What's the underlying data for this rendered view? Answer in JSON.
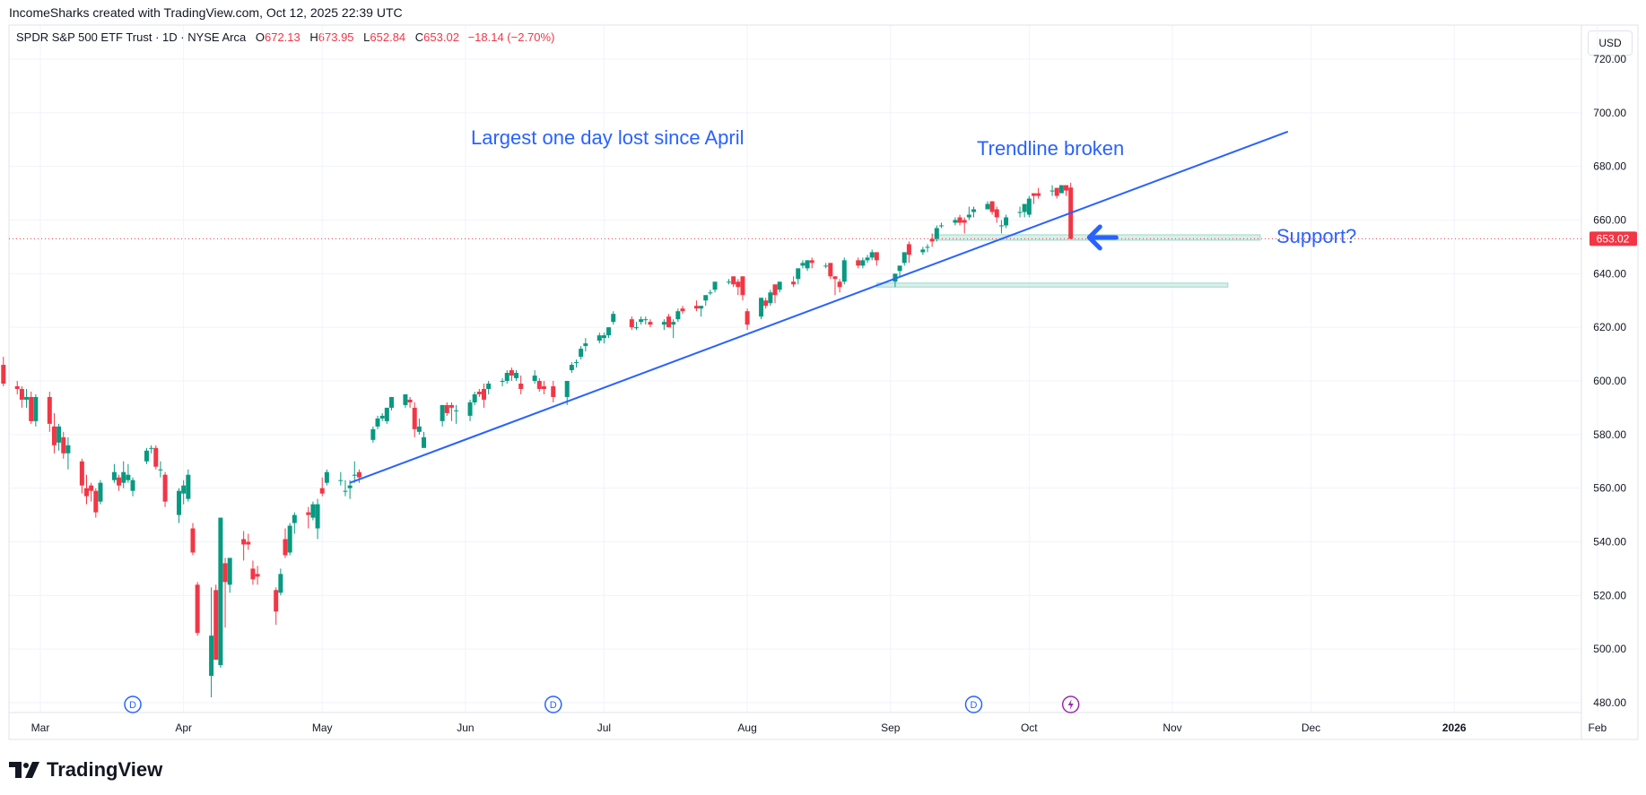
{
  "header": {
    "credit": "IncomeSharks created with TradingView.com, Oct 12, 2025 22:39 UTC"
  },
  "legend": {
    "symbol": "SPDR S&P 500 ETF Trust · 1D · NYSE Arca",
    "open_label": "O",
    "open": "672.13",
    "high_label": "H",
    "high": "673.95",
    "low_label": "L",
    "low": "652.84",
    "close_label": "C",
    "close": "653.02",
    "change": "−18.14 (−2.70%)"
  },
  "currency": "USD",
  "last_price_tag": "653.02",
  "annotations": {
    "largest_drop": "Largest one day lost since April",
    "trendline": "Trendline broken",
    "support": "Support?"
  },
  "footer": {
    "brand": "TradingView"
  },
  "colors": {
    "up": "#089981",
    "down": "#f23645",
    "annotation": "#2962ff",
    "trendline": "#2962ff",
    "zone": "#9fd8c9",
    "dividend_badge": "#2962ff",
    "split_badge": "#9c27b0",
    "grid": "#f0f3fa"
  },
  "event_icons": [
    "D",
    "D",
    "D",
    "lightning-icon"
  ],
  "chart_data": {
    "type": "candlestick",
    "title": "SPDR S&P 500 ETF Trust · 1D · NYSE Arca",
    "ylim": [
      475,
      727
    ],
    "y_ticks": [
      480,
      500,
      520,
      540,
      560,
      580,
      600,
      620,
      640,
      660,
      680,
      700,
      720
    ],
    "y_tick_labels": [
      "480.00",
      "500.00",
      "520.00",
      "540.00",
      "560.00",
      "580.00",
      "600.00",
      "620.00",
      "640.00",
      "660.00",
      "680.00",
      "700.00",
      "720.00"
    ],
    "x_labels": [
      "Mar",
      "Apr",
      "May",
      "Jun",
      "Jul",
      "Aug",
      "Sep",
      "Oct",
      "Nov",
      "Dec",
      "2026",
      "Feb"
    ],
    "grid": true,
    "last_price": 653.02,
    "trendline": {
      "from": [
        "2025-05-07",
        562
      ],
      "to": [
        "2025-11-26",
        693
      ]
    },
    "support_zones": [
      {
        "from": "2025-09-10",
        "to": "2025-11-20",
        "low": 652.5,
        "high": 654.5
      },
      {
        "from": "2025-08-29",
        "to": "2025-11-13",
        "low": 635,
        "high": 636.5
      }
    ],
    "events": [
      {
        "date": "2025-03-21",
        "kind": "dividend"
      },
      {
        "date": "2025-06-20",
        "kind": "dividend"
      },
      {
        "date": "2025-09-19",
        "kind": "dividend"
      },
      {
        "date": "2025-10-10",
        "kind": "split"
      }
    ],
    "candles": [
      [
        "2025-02-21",
        606,
        609,
        598,
        599
      ],
      [
        "2025-02-24",
        598,
        600,
        595,
        597
      ],
      [
        "2025-02-25",
        597,
        598,
        590,
        593
      ],
      [
        "2025-02-26",
        593,
        597,
        590,
        594
      ],
      [
        "2025-02-27",
        594,
        596,
        584,
        585
      ],
      [
        "2025-02-28",
        585,
        595,
        583,
        594
      ],
      [
        "2025-03-03",
        594,
        596,
        581,
        584
      ],
      [
        "2025-03-04",
        583,
        588,
        573,
        576
      ],
      [
        "2025-03-05",
        577,
        584,
        574,
        583
      ],
      [
        "2025-03-06",
        579,
        581,
        571,
        573
      ],
      [
        "2025-03-07",
        573,
        579,
        567,
        576
      ],
      [
        "2025-03-10",
        570,
        571,
        558,
        561
      ],
      [
        "2025-03-11",
        560,
        565,
        554,
        557
      ],
      [
        "2025-03-12",
        561,
        562,
        555,
        559
      ],
      [
        "2025-03-13",
        559,
        560,
        549,
        551
      ],
      [
        "2025-03-14",
        555,
        563,
        554,
        562
      ],
      [
        "2025-03-17",
        563,
        569,
        562,
        566
      ],
      [
        "2025-03-18",
        564,
        565,
        559,
        561
      ],
      [
        "2025-03-19",
        562,
        570,
        560,
        566
      ],
      [
        "2025-03-20",
        563,
        569,
        562,
        565
      ],
      [
        "2025-03-21",
        559,
        564,
        557,
        563
      ],
      [
        "2025-03-24",
        570,
        575,
        569,
        574
      ],
      [
        "2025-03-25",
        575,
        576,
        573,
        575
      ],
      [
        "2025-03-26",
        575,
        576,
        567,
        568
      ],
      [
        "2025-03-27",
        567,
        570,
        564,
        567
      ],
      [
        "2025-03-28",
        565,
        566,
        553,
        555
      ],
      [
        "2025-03-31",
        550,
        560,
        547,
        559
      ],
      [
        "2025-04-01",
        558,
        563,
        554,
        561
      ],
      [
        "2025-04-02",
        556,
        567,
        555,
        565
      ],
      [
        "2025-04-03",
        545,
        547,
        535,
        536
      ],
      [
        "2025-04-04",
        524,
        525,
        505,
        506
      ],
      [
        "2025-04-07",
        490,
        523,
        482,
        505
      ],
      [
        "2025-04-08",
        522,
        524,
        496,
        496
      ],
      [
        "2025-04-09",
        494,
        549,
        493,
        549
      ],
      [
        "2025-04-10",
        532,
        534,
        508,
        525
      ],
      [
        "2025-04-11",
        524,
        534,
        521,
        534
      ],
      [
        "2025-04-14",
        541,
        544,
        533,
        539
      ],
      [
        "2025-04-15",
        540,
        543,
        537,
        539
      ],
      [
        "2025-04-16",
        530,
        533,
        524,
        526
      ],
      [
        "2025-04-17",
        528,
        531,
        524,
        527
      ],
      [
        "2025-04-21",
        522,
        523,
        509,
        514
      ],
      [
        "2025-04-22",
        521,
        530,
        520,
        528
      ],
      [
        "2025-04-23",
        541,
        545,
        534,
        535
      ],
      [
        "2025-04-24",
        536,
        547,
        535,
        546
      ],
      [
        "2025-04-25",
        547,
        551,
        543,
        550
      ],
      [
        "2025-04-28",
        551,
        553,
        545,
        550
      ],
      [
        "2025-04-29",
        549,
        555,
        548,
        554
      ],
      [
        "2025-04-30",
        545,
        556,
        541,
        554
      ],
      [
        "2025-05-01",
        560,
        564,
        557,
        558
      ],
      [
        "2025-05-02",
        562,
        567,
        561,
        566
      ],
      [
        "2025-05-05",
        563,
        566,
        561,
        563
      ],
      [
        "2025-05-06",
        559,
        563,
        557,
        559
      ],
      [
        "2025-05-07",
        560,
        563,
        556,
        561
      ],
      [
        "2025-05-08",
        565,
        570,
        562,
        565
      ],
      [
        "2025-05-09",
        566,
        567,
        562,
        564
      ],
      [
        "2025-05-12",
        578,
        583,
        577,
        582
      ],
      [
        "2025-05-13",
        583,
        587,
        582,
        586
      ],
      [
        "2025-05-14",
        586,
        588,
        585,
        587
      ],
      [
        "2025-05-15",
        585,
        590,
        584,
        590
      ],
      [
        "2025-05-16",
        590,
        594,
        589,
        594
      ],
      [
        "2025-05-19",
        591,
        595,
        590,
        595
      ],
      [
        "2025-05-20",
        593,
        594,
        590,
        592
      ],
      [
        "2025-05-21",
        590,
        592,
        579,
        582
      ],
      [
        "2025-05-22",
        581,
        586,
        580,
        583
      ],
      [
        "2025-05-23",
        575,
        581,
        575,
        579
      ],
      [
        "2025-05-27",
        585,
        591,
        583,
        591
      ],
      [
        "2025-05-28",
        591,
        592,
        587,
        588
      ],
      [
        "2025-05-29",
        591,
        592,
        585,
        590
      ],
      [
        "2025-05-30",
        589,
        591,
        584,
        589
      ],
      [
        "2025-06-02",
        587,
        593,
        585,
        592
      ],
      [
        "2025-06-03",
        592,
        596,
        591,
        595
      ],
      [
        "2025-06-04",
        596,
        597,
        594,
        595
      ],
      [
        "2025-06-05",
        597,
        599,
        590,
        593
      ],
      [
        "2025-06-06",
        597,
        600,
        595,
        599
      ],
      [
        "2025-06-09",
        600,
        601,
        598,
        600
      ],
      [
        "2025-06-10",
        600,
        604,
        599,
        603
      ],
      [
        "2025-06-11",
        604,
        605,
        600,
        602
      ],
      [
        "2025-06-12",
        601,
        604,
        600,
        603
      ],
      [
        "2025-06-13",
        599,
        602,
        595,
        597
      ],
      [
        "2025-06-16",
        600,
        604,
        599,
        602
      ],
      [
        "2025-06-17",
        600,
        601,
        596,
        597
      ],
      [
        "2025-06-18",
        598,
        600,
        595,
        597
      ],
      [
        "2025-06-20",
        598,
        600,
        592,
        594
      ],
      [
        "2025-06-23",
        594,
        600,
        591,
        600
      ],
      [
        "2025-06-24",
        604,
        607,
        603,
        606
      ],
      [
        "2025-06-25",
        607,
        608,
        605,
        607
      ],
      [
        "2025-06-26",
        609,
        613,
        608,
        612
      ],
      [
        "2025-06-27",
        613,
        616,
        611,
        614
      ],
      [
        "2025-06-30",
        615,
        618,
        614,
        617
      ],
      [
        "2025-07-01",
        616,
        618,
        614,
        617
      ],
      [
        "2025-07-02",
        617,
        620,
        616,
        620
      ],
      [
        "2025-07-03",
        622,
        626,
        621,
        625
      ],
      [
        "2025-07-07",
        623,
        624,
        619,
        620
      ],
      [
        "2025-07-08",
        620,
        622,
        619,
        620
      ],
      [
        "2025-07-09",
        622,
        624,
        621,
        623
      ],
      [
        "2025-07-10",
        623,
        624,
        621,
        623
      ],
      [
        "2025-07-11",
        622,
        623,
        620,
        621
      ],
      [
        "2025-07-14",
        621,
        623,
        619,
        622
      ],
      [
        "2025-07-15",
        624,
        625,
        620,
        620
      ],
      [
        "2025-07-16",
        621,
        623,
        616,
        622
      ],
      [
        "2025-07-17",
        623,
        627,
        622,
        626
      ],
      [
        "2025-07-18",
        627,
        628,
        625,
        626
      ],
      [
        "2025-07-21",
        628,
        630,
        626,
        627
      ],
      [
        "2025-07-22",
        627,
        628,
        624,
        628
      ],
      [
        "2025-07-23",
        630,
        632,
        628,
        632
      ],
      [
        "2025-07-24",
        633,
        634,
        632,
        633
      ],
      [
        "2025-07-25",
        634,
        637,
        633,
        637
      ],
      [
        "2025-07-28",
        637,
        638,
        636,
        637
      ],
      [
        "2025-07-29",
        639,
        639,
        635,
        636
      ],
      [
        "2025-07-30",
        637,
        638,
        632,
        635
      ],
      [
        "2025-07-31",
        639,
        639,
        630,
        632
      ],
      [
        "2025-08-01",
        626,
        627,
        619,
        621
      ],
      [
        "2025-08-04",
        624,
        631,
        623,
        631
      ],
      [
        "2025-08-05",
        630,
        631,
        627,
        628
      ],
      [
        "2025-08-06",
        629,
        634,
        628,
        633
      ],
      [
        "2025-08-07",
        636,
        636,
        629,
        632
      ],
      [
        "2025-08-08",
        634,
        637,
        633,
        637
      ],
      [
        "2025-08-11",
        637,
        639,
        635,
        636
      ],
      [
        "2025-08-12",
        638,
        642,
        636,
        642
      ],
      [
        "2025-08-13",
        643,
        645,
        642,
        644
      ],
      [
        "2025-08-14",
        642,
        645,
        641,
        645
      ],
      [
        "2025-08-15",
        645,
        646,
        642,
        644
      ],
      [
        "2025-08-18",
        643,
        644,
        642,
        643
      ],
      [
        "2025-08-19",
        644,
        644,
        638,
        639
      ],
      [
        "2025-08-20",
        639,
        639,
        632,
        638
      ],
      [
        "2025-08-21",
        637,
        638,
        633,
        635
      ],
      [
        "2025-08-22",
        637,
        646,
        636,
        645
      ],
      [
        "2025-08-25",
        645,
        646,
        642,
        643
      ],
      [
        "2025-08-26",
        643,
        646,
        642,
        645
      ],
      [
        "2025-08-27",
        645,
        647,
        644,
        646
      ],
      [
        "2025-08-28",
        646,
        649,
        645,
        648
      ],
      [
        "2025-08-29",
        648,
        648,
        643,
        645
      ],
      [
        "2025-09-02",
        637,
        640,
        635,
        640
      ],
      [
        "2025-09-03",
        641,
        643,
        639,
        643
      ],
      [
        "2025-09-04",
        644,
        648,
        643,
        648
      ],
      [
        "2025-09-05",
        651,
        652,
        644,
        647
      ],
      [
        "2025-09-08",
        648,
        650,
        647,
        649
      ],
      [
        "2025-09-09",
        650,
        651,
        648,
        650
      ],
      [
        "2025-09-10",
        653,
        655,
        650,
        652
      ],
      [
        "2025-09-11",
        653,
        658,
        652,
        657
      ],
      [
        "2025-09-12",
        658,
        659,
        657,
        658
      ],
      [
        "2025-09-15",
        659,
        661,
        658,
        660
      ],
      [
        "2025-09-16",
        661,
        662,
        658,
        659
      ],
      [
        "2025-09-17",
        660,
        661,
        655,
        659
      ],
      [
        "2025-09-18",
        661,
        665,
        660,
        662
      ],
      [
        "2025-09-19",
        663,
        665,
        661,
        664
      ],
      [
        "2025-09-22",
        664,
        667,
        664,
        666
      ],
      [
        "2025-09-23",
        667,
        667,
        662,
        663
      ],
      [
        "2025-09-24",
        664,
        665,
        659,
        661
      ],
      [
        "2025-09-25",
        658,
        660,
        655,
        658
      ],
      [
        "2025-09-26",
        658,
        662,
        657,
        661
      ],
      [
        "2025-09-29",
        663,
        665,
        661,
        663
      ],
      [
        "2025-09-30",
        663,
        666,
        661,
        666
      ],
      [
        "2025-10-01",
        662,
        669,
        661,
        668
      ],
      [
        "2025-10-02",
        670,
        670,
        666,
        669
      ],
      [
        "2025-10-03",
        670,
        672,
        668,
        669
      ],
      [
        "2025-10-06",
        671,
        673,
        669,
        671
      ],
      [
        "2025-10-07",
        672,
        672,
        668,
        669
      ],
      [
        "2025-10-08",
        670,
        673,
        670,
        673
      ],
      [
        "2025-10-09",
        673,
        673,
        669,
        671
      ],
      [
        "2025-10-10",
        672.13,
        673.95,
        652.84,
        653.02
      ]
    ]
  }
}
